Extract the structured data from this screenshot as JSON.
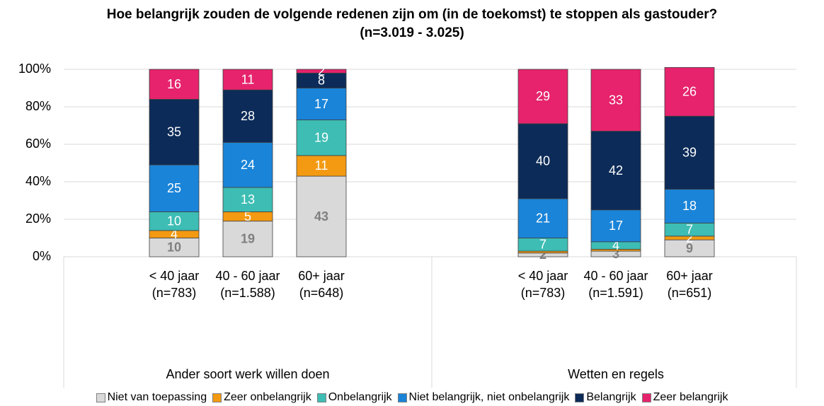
{
  "chart_data": {
    "type": "stacked_bar",
    "title": "Hoe belangrijk zouden de volgende redenen zijn om (in de toekomst) te stoppen als gastouder? (n=3.019 - 3.025)",
    "groups": [
      "Ander soort werk willen doen",
      "Wetten en regels"
    ],
    "categories": [
      "< 40 jaar (n=783)",
      "40 - 60 jaar (n=1.588)",
      "60+ jaar (n=648)",
      "< 40 jaar (n=783)",
      "40 - 60 jaar (n=1.591)",
      "60+ jaar (n=651)"
    ],
    "series": [
      {
        "name": "Niet van toepassing",
        "color": "#d9d9d9",
        "values": [
          10,
          19,
          43,
          2,
          3,
          9
        ]
      },
      {
        "name": "Zeer onbelangrijk",
        "color": "#f39a12",
        "values": [
          4,
          5,
          11,
          1,
          1,
          2
        ],
        "value_labels": [
          "4",
          "5",
          "11",
          null,
          null,
          "2"
        ]
      },
      {
        "name": "Onbelangrijk",
        "color": "#3dbdb4",
        "values": [
          10,
          13,
          19,
          7,
          4,
          7
        ]
      },
      {
        "name": "Niet belangrijk, niet onbelangrijk",
        "color": "#1a84d8",
        "values": [
          25,
          24,
          17,
          21,
          17,
          18
        ]
      },
      {
        "name": "Belangrijk",
        "color": "#0c2b58",
        "values": [
          35,
          28,
          8,
          40,
          42,
          39
        ]
      },
      {
        "name": "Zeer belangrijk",
        "color": "#e6236c",
        "values": [
          16,
          11,
          2,
          29,
          33,
          26
        ]
      }
    ],
    "ylim": [
      0,
      100
    ],
    "yticks": [
      {
        "value": 0,
        "label": "0%"
      },
      {
        "value": 20,
        "label": "20%"
      },
      {
        "value": 40,
        "label": "40%"
      },
      {
        "value": 60,
        "label": "60%"
      },
      {
        "value": 80,
        "label": "80%"
      },
      {
        "value": 100,
        "label": "100%"
      }
    ],
    "grid": true,
    "legend": "bottom"
  }
}
